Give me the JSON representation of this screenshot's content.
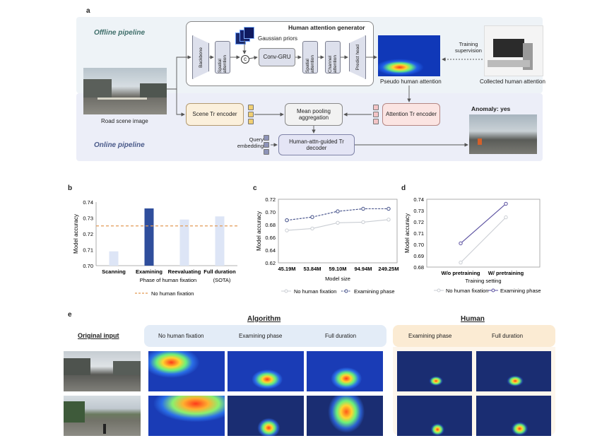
{
  "panel_a": {
    "letter": "a",
    "offline_title": "Offline pipeline",
    "online_title": "Online pipeline",
    "generator_title": "Human attention generator",
    "gaussian_priors": "Gaussian priors",
    "modules": {
      "backbone": "Backbone",
      "spatial1": "Spatial attention",
      "convgru": "Conv-GRU",
      "spatial2": "Spatial attention",
      "channel": "Channel attention",
      "predict": "Predict head"
    },
    "road_scene": "Road scene image",
    "pseudo": "Pseudo human attention",
    "collected": "Collected human attention",
    "training_supervision": "Training supervision",
    "scene_encoder": "Scene Tr encoder",
    "mean_pooling": "Mean pooling aggregation",
    "attention_encoder": "Attention Tr encoder",
    "query": "Query embedding",
    "decoder": "Human-attn-guided Tr decoder",
    "anomaly": "Anomaly: yes"
  },
  "panel_b": {
    "letter": "b",
    "chart_data": {
      "type": "bar",
      "categories": [
        "Scanning",
        "Examining",
        "Reevaluating",
        "Full duration"
      ],
      "category_note": "(SOTA)",
      "values": [
        0.709,
        0.736,
        0.729,
        0.731
      ],
      "highlight_index": 1,
      "baseline": 0.725,
      "baseline_label": "No human fixation",
      "xlabel": "Phase of human fixation",
      "ylabel": "Model accuracy",
      "yticks": [
        "0.70",
        "0.71",
        "0.72",
        "0.73",
        "0.74"
      ],
      "ylim": [
        0.7,
        0.74
      ],
      "colors": {
        "bar": "#dde5f6",
        "highlight": "#2f4e9c",
        "baseline": "#e39a55"
      }
    }
  },
  "panel_c": {
    "letter": "c",
    "chart_data": {
      "type": "line",
      "categories": [
        "45.19M",
        "53.84M",
        "59.10M",
        "94.94M",
        "249.25M"
      ],
      "series": [
        {
          "name": "No human fixation",
          "values": [
            0.671,
            0.674,
            0.683,
            0.684,
            0.688
          ]
        },
        {
          "name": "Examining phase",
          "values": [
            0.687,
            0.692,
            0.701,
            0.705,
            0.705
          ]
        }
      ],
      "xlabel": "Model size",
      "ylabel": "Model accuracy",
      "yticks": [
        "0.62",
        "0.64",
        "0.66",
        "0.68",
        "0.70",
        "0.72"
      ],
      "ylim": [
        0.62,
        0.72
      ],
      "colors": {
        "no_fix": "#c9cdd3",
        "exam": "#3f4c86"
      }
    }
  },
  "panel_d": {
    "letter": "d",
    "chart_data": {
      "type": "line",
      "categories": [
        "W/o pretraining",
        "W/ pretraining"
      ],
      "series": [
        {
          "name": "No human fixation",
          "values": [
            0.684,
            0.724
          ]
        },
        {
          "name": "Examining phase",
          "values": [
            0.701,
            0.736
          ]
        }
      ],
      "xlabel": "Training setting",
      "ylabel": "Model accuracy",
      "yticks": [
        "0.68",
        "0.69",
        "0.70",
        "0.71",
        "0.72",
        "0.73",
        "0.74"
      ],
      "ylim": [
        0.68,
        0.74
      ],
      "colors": {
        "no_fix": "#c9cdd3",
        "exam": "#5a50a0"
      }
    }
  },
  "panel_e": {
    "letter": "e",
    "original_input": "Original input",
    "algorithm": "Algorithm",
    "human": "Human",
    "columns": [
      "No human fixation",
      "Examining phase",
      "Full duration",
      "Examining phase",
      "Full duration"
    ]
  }
}
